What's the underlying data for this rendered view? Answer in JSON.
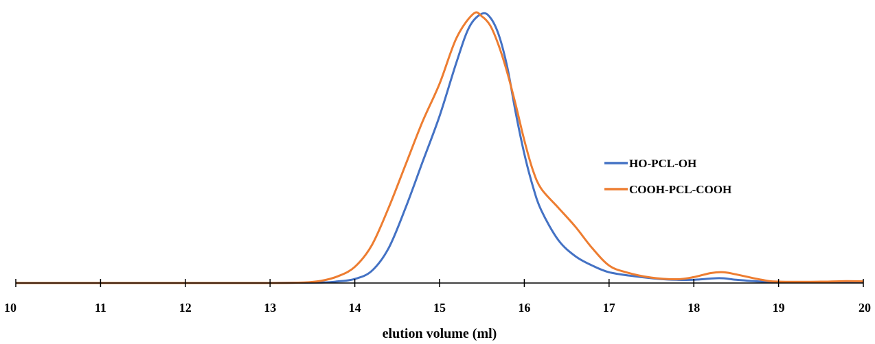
{
  "chart_data": {
    "type": "line",
    "title": "",
    "xlabel": "elution volume (ml)",
    "ylabel": "",
    "xlim": [
      10,
      20
    ],
    "ylim": [
      0,
      1
    ],
    "x_ticks": [
      "10",
      "11",
      "12",
      "13",
      "14",
      "15",
      "16",
      "17",
      "18",
      "19",
      "20"
    ],
    "grid": false,
    "legend_position": "center-right",
    "series": [
      {
        "name": "HO-PCL-OH",
        "color": "#4472C4",
        "points": [
          [
            10,
            0.0
          ],
          [
            11,
            0.0
          ],
          [
            12,
            0.0
          ],
          [
            13,
            0.0
          ],
          [
            13.6,
            0.002
          ],
          [
            13.8,
            0.006
          ],
          [
            14.0,
            0.015
          ],
          [
            14.2,
            0.045
          ],
          [
            14.4,
            0.13
          ],
          [
            14.6,
            0.28
          ],
          [
            14.8,
            0.45
          ],
          [
            15.0,
            0.62
          ],
          [
            15.2,
            0.82
          ],
          [
            15.35,
            0.95
          ],
          [
            15.5,
            1.0
          ],
          [
            15.6,
            0.985
          ],
          [
            15.7,
            0.92
          ],
          [
            15.8,
            0.8
          ],
          [
            15.9,
            0.63
          ],
          [
            16.0,
            0.48
          ],
          [
            16.1,
            0.36
          ],
          [
            16.2,
            0.27
          ],
          [
            16.4,
            0.16
          ],
          [
            16.6,
            0.1
          ],
          [
            16.8,
            0.065
          ],
          [
            17.0,
            0.04
          ],
          [
            17.3,
            0.025
          ],
          [
            17.6,
            0.015
          ],
          [
            17.8,
            0.012
          ],
          [
            18.0,
            0.012
          ],
          [
            18.3,
            0.018
          ],
          [
            18.5,
            0.012
          ],
          [
            18.8,
            0.005
          ],
          [
            19.0,
            0.003
          ],
          [
            19.5,
            0.003
          ],
          [
            19.8,
            0.004
          ],
          [
            20.0,
            0.003
          ]
        ]
      },
      {
        "name": "COOH-PCL-COOH",
        "color": "#ED7D31",
        "points": [
          [
            10,
            0.0
          ],
          [
            11,
            0.0
          ],
          [
            12,
            0.0
          ],
          [
            13,
            0.0
          ],
          [
            13.4,
            0.002
          ],
          [
            13.6,
            0.008
          ],
          [
            13.8,
            0.025
          ],
          [
            14.0,
            0.06
          ],
          [
            14.2,
            0.14
          ],
          [
            14.4,
            0.28
          ],
          [
            14.6,
            0.44
          ],
          [
            14.8,
            0.6
          ],
          [
            15.0,
            0.74
          ],
          [
            15.2,
            0.91
          ],
          [
            15.4,
            1.0
          ],
          [
            15.5,
            0.99
          ],
          [
            15.6,
            0.955
          ],
          [
            15.7,
            0.88
          ],
          [
            15.8,
            0.78
          ],
          [
            15.9,
            0.66
          ],
          [
            16.0,
            0.53
          ],
          [
            16.1,
            0.42
          ],
          [
            16.2,
            0.35
          ],
          [
            16.4,
            0.28
          ],
          [
            16.6,
            0.21
          ],
          [
            16.8,
            0.13
          ],
          [
            17.0,
            0.065
          ],
          [
            17.2,
            0.04
          ],
          [
            17.5,
            0.02
          ],
          [
            17.8,
            0.014
          ],
          [
            18.0,
            0.022
          ],
          [
            18.2,
            0.037
          ],
          [
            18.35,
            0.04
          ],
          [
            18.5,
            0.032
          ],
          [
            18.8,
            0.012
          ],
          [
            19.0,
            0.005
          ],
          [
            19.5,
            0.005
          ],
          [
            19.8,
            0.007
          ],
          [
            20.0,
            0.006
          ]
        ]
      }
    ]
  }
}
